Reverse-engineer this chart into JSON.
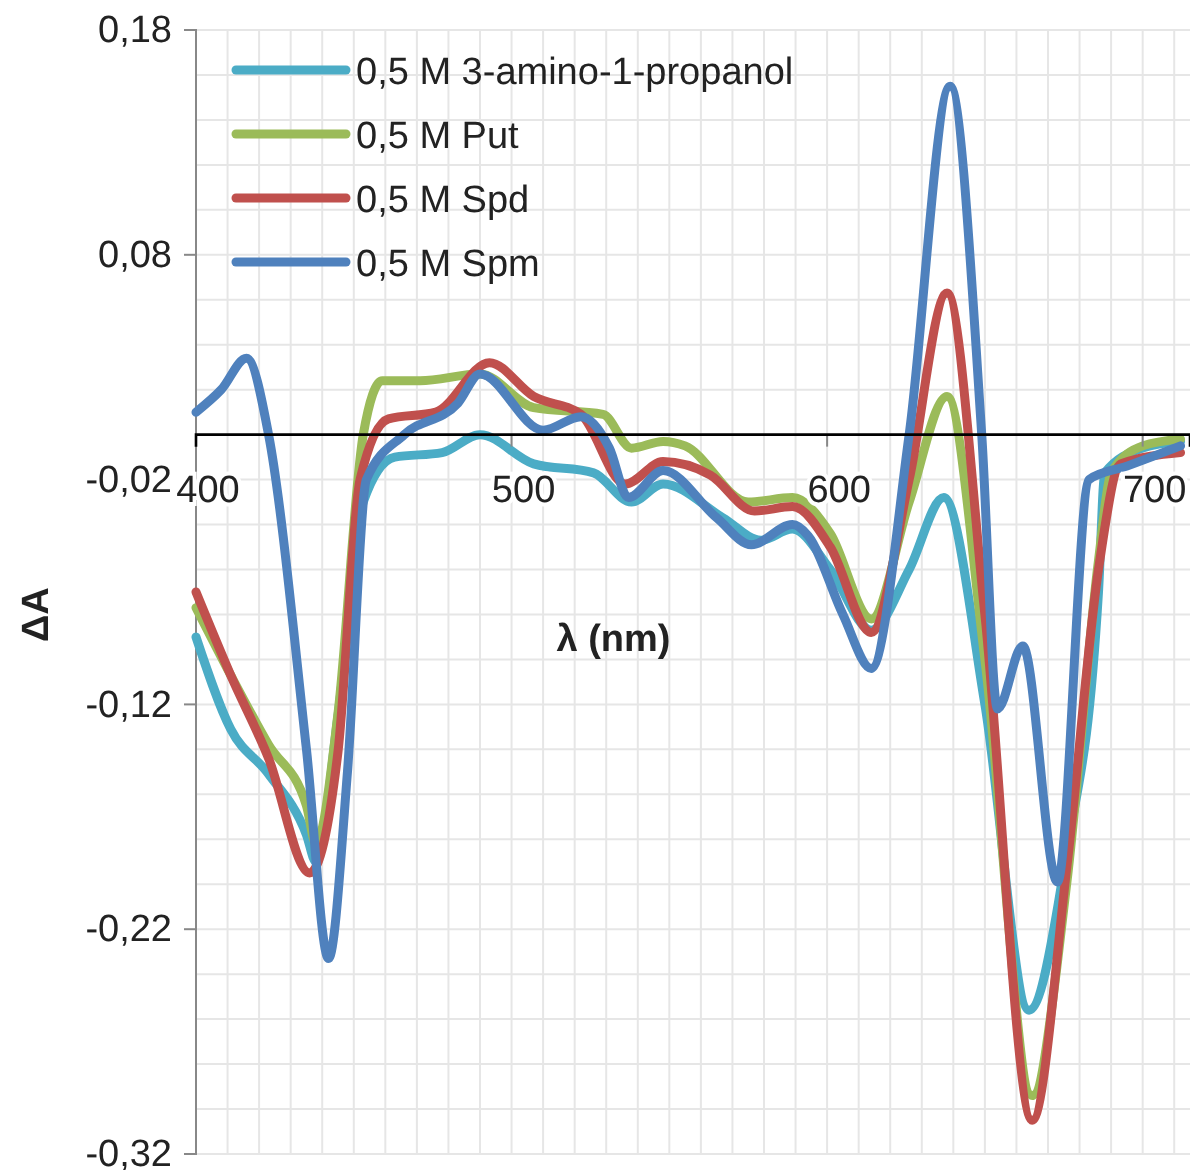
{
  "chart_data": {
    "type": "line",
    "xlabel": "λ (nm)",
    "ylabel": "ΔA",
    "xlim": [
      400,
      715
    ],
    "ylim": [
      -0.32,
      0.18
    ],
    "xticks": [
      400,
      {
        "value": 410,
        "label": null
      },
      {
        "value": 420,
        "label": null
      },
      {
        "value": 430,
        "label": null
      },
      {
        "value": 440,
        "label": null
      },
      {
        "value": 450,
        "label": null
      },
      {
        "value": 460,
        "label": null
      },
      {
        "value": 470,
        "label": null
      },
      {
        "value": 480,
        "label": null
      },
      {
        "value": 490,
        "label": null
      },
      500,
      {
        "value": 510,
        "label": null
      },
      {
        "value": 520,
        "label": null
      },
      {
        "value": 530,
        "label": null
      },
      {
        "value": 540,
        "label": null
      },
      {
        "value": 550,
        "label": null
      },
      {
        "value": 560,
        "label": null
      },
      {
        "value": 570,
        "label": null
      },
      {
        "value": 580,
        "label": null
      },
      {
        "value": 590,
        "label": null
      },
      600,
      {
        "value": 610,
        "label": null
      },
      {
        "value": 620,
        "label": null
      },
      {
        "value": 630,
        "label": null
      },
      {
        "value": 640,
        "label": null
      },
      {
        "value": 650,
        "label": null
      },
      {
        "value": 660,
        "label": null
      },
      {
        "value": 670,
        "label": null
      },
      {
        "value": 680,
        "label": null
      },
      {
        "value": 690,
        "label": null
      },
      700,
      {
        "value": 710,
        "label": null
      }
    ],
    "yticks": [
      {
        "value": -0.32,
        "label": "-0,32"
      },
      {
        "value": -0.3,
        "label": null
      },
      {
        "value": -0.28,
        "label": null
      },
      {
        "value": -0.26,
        "label": null
      },
      {
        "value": -0.24,
        "label": null
      },
      {
        "value": -0.22,
        "label": "-0,22"
      },
      {
        "value": -0.2,
        "label": null
      },
      {
        "value": -0.18,
        "label": null
      },
      {
        "value": -0.16,
        "label": null
      },
      {
        "value": -0.14,
        "label": null
      },
      {
        "value": -0.12,
        "label": "-0,12"
      },
      {
        "value": -0.1,
        "label": null
      },
      {
        "value": -0.08,
        "label": null
      },
      {
        "value": -0.06,
        "label": null
      },
      {
        "value": -0.04,
        "label": null
      },
      {
        "value": -0.02,
        "label": "-0,02"
      },
      {
        "value": 0,
        "label": null
      },
      {
        "value": 0.02,
        "label": null
      },
      {
        "value": 0.04,
        "label": null
      },
      {
        "value": 0.06,
        "label": null
      },
      {
        "value": 0.08,
        "label": "0,08"
      },
      {
        "value": 0.1,
        "label": null
      },
      {
        "value": 0.12,
        "label": null
      },
      {
        "value": 0.14,
        "label": null
      },
      {
        "value": 0.16,
        "label": null
      },
      {
        "value": 0.18,
        "label": "0,18"
      }
    ],
    "grid": true,
    "legend": "top left",
    "line_style": "solid",
    "marker": "none",
    "series": [
      {
        "name": "0,5 M 3-amino-1-propanol",
        "color": "#4bacc6",
        "x": [
          400,
          411,
          423,
          435,
          438,
          445,
          453,
          463,
          478,
          490,
          507,
          526,
          538,
          548,
          567,
          579,
          589,
          601,
          614,
          626,
          637,
          650,
          664,
          676,
          686,
          688,
          700,
          712
        ],
        "values": [
          -0.09,
          -0.131,
          -0.151,
          -0.178,
          -0.19,
          -0.125,
          -0.03,
          -0.01,
          -0.008,
          0,
          -0.013,
          -0.017,
          -0.03,
          -0.022,
          -0.037,
          -0.047,
          -0.042,
          -0.06,
          -0.087,
          -0.06,
          -0.028,
          -0.12,
          -0.256,
          -0.185,
          -0.07,
          -0.017,
          -0.006,
          -0.003
        ]
      },
      {
        "name": "0,5 M Put",
        "color": "#9bbb59",
        "x": [
          400,
          411,
          423,
          435,
          438,
          445,
          453,
          459,
          471,
          490,
          507,
          529,
          538,
          548,
          555,
          575,
          589,
          601,
          614,
          626,
          638,
          650,
          665,
          676,
          686,
          690,
          700,
          712
        ],
        "values": [
          -0.077,
          -0.107,
          -0.138,
          -0.165,
          -0.182,
          -0.124,
          0,
          0.024,
          0.024,
          0.027,
          0.012,
          0.009,
          -0.006,
          -0.003,
          -0.005,
          -0.03,
          -0.028,
          -0.044,
          -0.082,
          -0.03,
          0.017,
          -0.1,
          -0.294,
          -0.199,
          -0.056,
          -0.017,
          -0.005,
          -0.002
        ]
      },
      {
        "name": "0,5 M Spd",
        "color": "#c0504d",
        "x": [
          400,
          411,
          423,
          436,
          445,
          452,
          461,
          476,
          493,
          507,
          522,
          536,
          548,
          563,
          577,
          589,
          601,
          614,
          626,
          638,
          650,
          665,
          676,
          686,
          693,
          712
        ],
        "values": [
          -0.07,
          -0.107,
          -0.144,
          -0.195,
          -0.141,
          -0.02,
          0.007,
          0.01,
          0.032,
          0.017,
          0.009,
          -0.022,
          -0.012,
          -0.018,
          -0.034,
          -0.032,
          -0.05,
          -0.088,
          -0.02,
          0.063,
          -0.08,
          -0.305,
          -0.192,
          -0.06,
          -0.013,
          -0.008
        ]
      },
      {
        "name": "0,5 M Spm",
        "color": "#4f81bd",
        "x": [
          400,
          408,
          416,
          423,
          435,
          442,
          448,
          454,
          466,
          483,
          490,
          510,
          522,
          531,
          537,
          548,
          565,
          576,
          589,
          594,
          605,
          614,
          626,
          639,
          649,
          654,
          662,
          673,
          683,
          695,
          712
        ],
        "values": [
          0.01,
          0.02,
          0.034,
          0,
          -0.14,
          -0.233,
          -0.15,
          -0.02,
          0,
          0.014,
          0.027,
          0.002,
          0.008,
          -0.006,
          -0.028,
          -0.016,
          -0.037,
          -0.049,
          -0.04,
          -0.045,
          -0.08,
          -0.104,
          0,
          0.155,
          0,
          -0.122,
          -0.094,
          -0.199,
          -0.02,
          -0.014,
          -0.005
        ]
      }
    ]
  }
}
